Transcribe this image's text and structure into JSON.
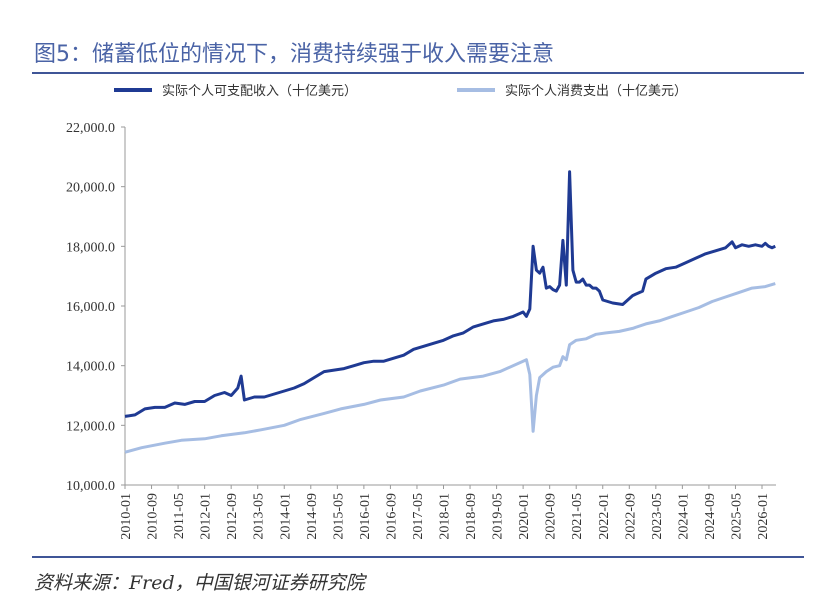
{
  "title": "图5：储蓄低位的情况下，消费持续强于收入需要注意",
  "source": "资料来源：Fred，中国银河证券研究院",
  "chart_data": {
    "type": "line",
    "ylim": [
      10000,
      22000
    ],
    "yticks": [
      "10,000.0",
      "12,000.0",
      "14,000.0",
      "16,000.0",
      "18,000.0",
      "20,000.0",
      "22,000.0"
    ],
    "ytick_values": [
      10000,
      12000,
      14000,
      16000,
      18000,
      20000,
      22000
    ],
    "xticks": [
      "2010-01",
      "2010-09",
      "2011-05",
      "2012-01",
      "2012-09",
      "2013-05",
      "2014-01",
      "2014-09",
      "2015-05",
      "2016-01",
      "2016-09",
      "2017-05",
      "2018-01",
      "2018-09",
      "2019-05",
      "2020-01",
      "2020-09",
      "2021-05",
      "2022-01",
      "2022-09",
      "2023-05",
      "2024-01",
      "2024-09",
      "2025-05",
      "2026-01"
    ],
    "x_start": "2010-01",
    "legend_position": "top",
    "grid": false,
    "series": [
      {
        "name": "实际个人可支配收入（十亿美元）",
        "color": "#1f3a93",
        "points": [
          [
            "2010-01",
            12300
          ],
          [
            "2010-04",
            12350
          ],
          [
            "2010-07",
            12550
          ],
          [
            "2010-10",
            12600
          ],
          [
            "2011-01",
            12600
          ],
          [
            "2011-04",
            12750
          ],
          [
            "2011-07",
            12700
          ],
          [
            "2011-10",
            12800
          ],
          [
            "2012-01",
            12800
          ],
          [
            "2012-04",
            13000
          ],
          [
            "2012-07",
            13100
          ],
          [
            "2012-09",
            13000
          ],
          [
            "2012-11",
            13250
          ],
          [
            "2012-12",
            13650
          ],
          [
            "2013-01",
            12850
          ],
          [
            "2013-04",
            12950
          ],
          [
            "2013-07",
            12950
          ],
          [
            "2013-10",
            13050
          ],
          [
            "2014-01",
            13150
          ],
          [
            "2014-04",
            13250
          ],
          [
            "2014-07",
            13400
          ],
          [
            "2014-10",
            13600
          ],
          [
            "2015-01",
            13800
          ],
          [
            "2015-04",
            13850
          ],
          [
            "2015-07",
            13900
          ],
          [
            "2015-10",
            14000
          ],
          [
            "2016-01",
            14100
          ],
          [
            "2016-04",
            14150
          ],
          [
            "2016-07",
            14150
          ],
          [
            "2016-10",
            14250
          ],
          [
            "2017-01",
            14350
          ],
          [
            "2017-04",
            14550
          ],
          [
            "2017-07",
            14650
          ],
          [
            "2017-10",
            14750
          ],
          [
            "2018-01",
            14850
          ],
          [
            "2018-04",
            15000
          ],
          [
            "2018-07",
            15100
          ],
          [
            "2018-10",
            15300
          ],
          [
            "2019-01",
            15400
          ],
          [
            "2019-04",
            15500
          ],
          [
            "2019-07",
            15550
          ],
          [
            "2019-10",
            15650
          ],
          [
            "2019-12",
            15750
          ],
          [
            "2020-01",
            15800
          ],
          [
            "2020-02",
            15650
          ],
          [
            "2020-03",
            15900
          ],
          [
            "2020-04",
            18000
          ],
          [
            "2020-05",
            17200
          ],
          [
            "2020-06",
            17100
          ],
          [
            "2020-07",
            17300
          ],
          [
            "2020-08",
            16600
          ],
          [
            "2020-09",
            16650
          ],
          [
            "2020-10",
            16550
          ],
          [
            "2020-11",
            16500
          ],
          [
            "2020-12",
            16700
          ],
          [
            "2021-01",
            18200
          ],
          [
            "2021-02",
            16700
          ],
          [
            "2021-03",
            20500
          ],
          [
            "2021-04",
            17200
          ],
          [
            "2021-05",
            16800
          ],
          [
            "2021-06",
            16800
          ],
          [
            "2021-07",
            16900
          ],
          [
            "2021-08",
            16700
          ],
          [
            "2021-09",
            16700
          ],
          [
            "2021-10",
            16600
          ],
          [
            "2021-11",
            16600
          ],
          [
            "2021-12",
            16500
          ],
          [
            "2022-01",
            16200
          ],
          [
            "2022-04",
            16100
          ],
          [
            "2022-07",
            16050
          ],
          [
            "2022-10",
            16350
          ],
          [
            "2023-01",
            16500
          ],
          [
            "2023-02",
            16900
          ],
          [
            "2023-05",
            17100
          ],
          [
            "2023-08",
            17250
          ],
          [
            "2023-11",
            17300
          ],
          [
            "2024-02",
            17450
          ],
          [
            "2024-05",
            17600
          ],
          [
            "2024-08",
            17750
          ],
          [
            "2024-11",
            17850
          ],
          [
            "2025-02",
            17950
          ],
          [
            "2025-03",
            18050
          ],
          [
            "2025-04",
            18150
          ],
          [
            "2025-05",
            17950
          ],
          [
            "2025-07",
            18050
          ],
          [
            "2025-09",
            18000
          ],
          [
            "2025-11",
            18050
          ],
          [
            "2026-01",
            18000
          ],
          [
            "2026-02",
            18100
          ],
          [
            "2026-03",
            18000
          ],
          [
            "2026-04",
            17950
          ],
          [
            "2026-05",
            18000
          ]
        ]
      },
      {
        "name": "实际个人消费支出（十亿美元）",
        "color": "#a6bde3",
        "points": [
          [
            "2010-01",
            11100
          ],
          [
            "2010-06",
            11250
          ],
          [
            "2011-01",
            11400
          ],
          [
            "2011-06",
            11500
          ],
          [
            "2012-01",
            11550
          ],
          [
            "2012-06",
            11650
          ],
          [
            "2013-01",
            11750
          ],
          [
            "2013-06",
            11850
          ],
          [
            "2014-01",
            12000
          ],
          [
            "2014-06",
            12200
          ],
          [
            "2015-01",
            12400
          ],
          [
            "2015-06",
            12550
          ],
          [
            "2016-01",
            12700
          ],
          [
            "2016-06",
            12850
          ],
          [
            "2017-01",
            12950
          ],
          [
            "2017-06",
            13150
          ],
          [
            "2018-01",
            13350
          ],
          [
            "2018-06",
            13550
          ],
          [
            "2019-01",
            13650
          ],
          [
            "2019-06",
            13800
          ],
          [
            "2020-01",
            14150
          ],
          [
            "2020-02",
            14200
          ],
          [
            "2020-03",
            13700
          ],
          [
            "2020-04",
            11800
          ],
          [
            "2020-05",
            13000
          ],
          [
            "2020-06",
            13600
          ],
          [
            "2020-08",
            13800
          ],
          [
            "2020-10",
            13950
          ],
          [
            "2020-12",
            14000
          ],
          [
            "2021-01",
            14300
          ],
          [
            "2021-02",
            14200
          ],
          [
            "2021-03",
            14700
          ],
          [
            "2021-05",
            14850
          ],
          [
            "2021-08",
            14900
          ],
          [
            "2021-11",
            15050
          ],
          [
            "2022-02",
            15100
          ],
          [
            "2022-06",
            15150
          ],
          [
            "2022-10",
            15250
          ],
          [
            "2023-02",
            15400
          ],
          [
            "2023-06",
            15500
          ],
          [
            "2023-10",
            15650
          ],
          [
            "2024-02",
            15800
          ],
          [
            "2024-06",
            15950
          ],
          [
            "2024-10",
            16150
          ],
          [
            "2025-02",
            16300
          ],
          [
            "2025-06",
            16450
          ],
          [
            "2025-10",
            16600
          ],
          [
            "2026-02",
            16650
          ],
          [
            "2026-05",
            16750
          ]
        ]
      }
    ]
  }
}
